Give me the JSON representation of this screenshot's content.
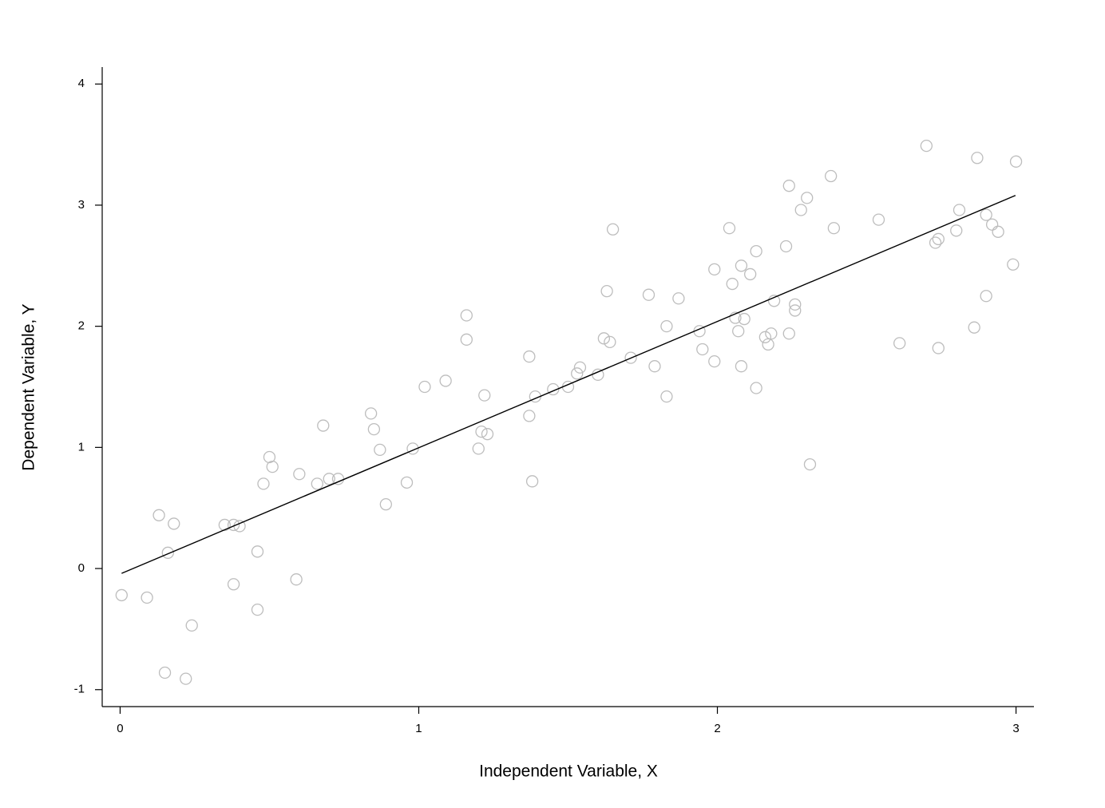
{
  "chart_data": {
    "type": "scatter",
    "x_label": "Independent Variable, X",
    "y_label": "Dependent Variable, Y",
    "xlim": [
      -0.06,
      3.06
    ],
    "ylim": [
      -1.14,
      4.14
    ],
    "xticks": [
      0,
      1,
      2,
      3
    ],
    "yticks": [
      -1,
      0,
      1,
      2,
      3,
      4
    ],
    "grid": false,
    "series": [
      {
        "type": "scatter",
        "color": "#bdbdbd",
        "x": [
          0.005,
          0.09,
          0.13,
          0.18,
          0.16,
          0.15,
          0.22,
          0.24,
          0.35,
          0.38,
          0.4,
          0.38,
          0.46,
          0.46,
          0.48,
          0.5,
          0.51,
          0.59,
          0.6,
          0.66,
          0.68,
          0.7,
          0.73,
          0.84,
          0.85,
          0.87,
          0.89,
          0.96,
          0.98,
          1.02,
          1.09,
          1.16,
          1.16,
          1.2,
          1.21,
          1.23,
          1.22,
          1.37,
          1.37,
          1.38,
          1.39,
          1.45,
          1.5,
          1.53,
          1.54,
          1.6,
          1.62,
          1.63,
          1.64,
          1.65,
          1.71,
          1.77,
          1.79,
          1.83,
          1.83,
          1.87,
          1.94,
          1.95,
          1.99,
          1.99,
          2.04,
          2.05,
          2.06,
          2.07,
          2.08,
          2.08,
          2.09,
          2.11,
          2.13,
          2.13,
          2.16,
          2.17,
          2.18,
          2.19,
          2.23,
          2.24,
          2.24,
          2.26,
          2.26,
          2.28,
          2.3,
          2.31,
          2.38,
          2.39,
          2.54,
          2.61,
          2.7,
          2.73,
          2.74,
          2.74,
          2.8,
          2.81,
          2.86,
          2.87,
          2.9,
          2.9,
          2.92,
          2.94,
          2.99,
          3.0
        ],
        "values": [
          -0.22,
          -0.24,
          0.44,
          0.37,
          0.13,
          -0.86,
          -0.91,
          -0.47,
          0.36,
          0.36,
          0.35,
          -0.13,
          0.14,
          -0.34,
          0.7,
          0.92,
          0.84,
          -0.09,
          0.78,
          0.7,
          1.18,
          0.74,
          0.74,
          1.28,
          1.15,
          0.98,
          0.53,
          0.71,
          0.99,
          1.5,
          1.55,
          1.89,
          2.09,
          0.99,
          1.13,
          1.11,
          1.43,
          1.26,
          1.75,
          0.72,
          1.42,
          1.48,
          1.5,
          1.61,
          1.66,
          1.6,
          1.9,
          2.29,
          1.87,
          2.8,
          1.74,
          2.26,
          1.67,
          2.0,
          1.42,
          2.23,
          1.96,
          1.81,
          1.71,
          2.47,
          2.81,
          2.35,
          2.07,
          1.96,
          2.5,
          1.67,
          2.06,
          2.43,
          2.62,
          1.49,
          1.91,
          1.85,
          1.94,
          2.21,
          2.66,
          3.16,
          1.94,
          2.13,
          2.18,
          2.96,
          3.06,
          0.86,
          3.24,
          2.81,
          2.88,
          1.86,
          3.49,
          2.69,
          2.72,
          1.82,
          2.79,
          2.96,
          1.99,
          3.39,
          2.92,
          2.25,
          2.84,
          2.78,
          2.51,
          3.36
        ]
      },
      {
        "type": "line",
        "color": "#000000",
        "x": [
          0.005,
          2.998
        ],
        "values": [
          -0.04,
          3.08
        ]
      }
    ]
  }
}
